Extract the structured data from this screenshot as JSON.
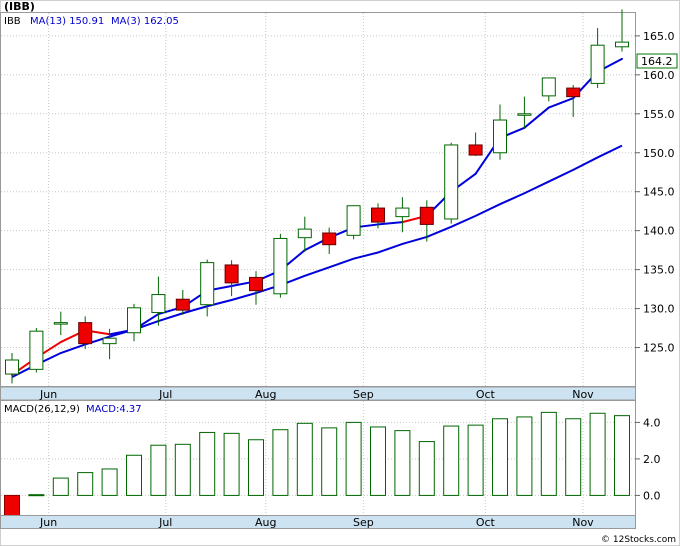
{
  "chart_data": [
    {
      "type": "candlestick",
      "title": "(IBB)",
      "symbol_label": "IBB",
      "legend": [
        {
          "label": "MA(13)",
          "value": "150.91",
          "color": "#0000cc"
        },
        {
          "label": "MA(3)",
          "value": "162.05",
          "color": "#0000cc"
        }
      ],
      "last_price_label": "164.2",
      "ylim": [
        120,
        168
      ],
      "yticks": [
        125,
        130,
        135,
        140,
        145,
        150,
        155,
        160,
        165
      ],
      "x_month_labels": [
        {
          "label": "Jun",
          "index": 1.5
        },
        {
          "label": "Jul",
          "index": 6.3
        },
        {
          "label": "Aug",
          "index": 10.4
        },
        {
          "label": "Sep",
          "index": 14.4
        },
        {
          "label": "Oct",
          "index": 19.4
        },
        {
          "label": "Nov",
          "index": 23.4
        }
      ],
      "candles": [
        {
          "open": 121.6,
          "high": 124.3,
          "low": 120.4,
          "close": 123.4
        },
        {
          "open": 122.2,
          "high": 127.5,
          "low": 121.8,
          "close": 127.1
        },
        {
          "open": 128.1,
          "high": 129.6,
          "low": 126.6,
          "close": 128.2
        },
        {
          "open": 128.2,
          "high": 129.0,
          "low": 124.8,
          "close": 125.5
        },
        {
          "open": 125.5,
          "high": 127.4,
          "low": 123.5,
          "close": 126.2
        },
        {
          "open": 126.9,
          "high": 130.6,
          "low": 125.8,
          "close": 130.1
        },
        {
          "open": 129.5,
          "high": 134.1,
          "low": 127.8,
          "close": 131.8
        },
        {
          "open": 131.2,
          "high": 132.4,
          "low": 129.2,
          "close": 129.8
        },
        {
          "open": 130.5,
          "high": 136.3,
          "low": 129.0,
          "close": 135.9
        },
        {
          "open": 135.6,
          "high": 136.2,
          "low": 131.6,
          "close": 133.3
        },
        {
          "open": 134.0,
          "high": 134.8,
          "low": 130.5,
          "close": 132.3
        },
        {
          "open": 131.9,
          "high": 139.6,
          "low": 131.4,
          "close": 139.0
        },
        {
          "open": 139.1,
          "high": 141.8,
          "low": 137.3,
          "close": 140.2
        },
        {
          "open": 139.7,
          "high": 140.4,
          "low": 137.0,
          "close": 138.2
        },
        {
          "open": 139.4,
          "high": 143.2,
          "low": 138.9,
          "close": 143.2
        },
        {
          "open": 142.9,
          "high": 143.5,
          "low": 140.3,
          "close": 141.1
        },
        {
          "open": 141.8,
          "high": 144.3,
          "low": 139.8,
          "close": 142.9
        },
        {
          "open": 143.0,
          "high": 143.9,
          "low": 138.6,
          "close": 140.8
        },
        {
          "open": 141.5,
          "high": 151.3,
          "low": 140.9,
          "close": 151.0
        },
        {
          "open": 151.0,
          "high": 152.6,
          "low": 149.6,
          "close": 149.7
        },
        {
          "open": 150.0,
          "high": 156.2,
          "low": 149.1,
          "close": 154.2
        },
        {
          "open": 155.0,
          "high": 157.2,
          "low": 153.1,
          "close": 155.0
        },
        {
          "open": 157.3,
          "high": 159.6,
          "low": 156.6,
          "close": 159.6
        },
        {
          "open": 158.3,
          "high": 158.7,
          "low": 154.6,
          "close": 157.2
        },
        {
          "open": 158.9,
          "high": 166.0,
          "low": 158.3,
          "close": 163.8
        },
        {
          "open": 163.6,
          "high": 168.4,
          "low": 163.0,
          "close": 164.2
        }
      ],
      "ma13": [
        null,
        null,
        null,
        null,
        null,
        null,
        null,
        null,
        null,
        null,
        null,
        null,
        null,
        null,
        null,
        null,
        null,
        null,
        null,
        null,
        null,
        null,
        null,
        null,
        null,
        150.91
      ],
      "ma13_series": [
        121.2,
        122.8,
        124.3,
        125.4,
        126.4,
        127.3,
        128.4,
        129.4,
        130.3,
        131.1,
        132.0,
        133.0,
        134.2,
        135.3,
        136.4,
        137.2,
        138.3,
        139.2,
        140.5,
        141.9,
        143.4,
        144.8,
        146.3,
        147.8,
        149.4,
        150.91
      ],
      "ma3": [
        121.5,
        123.7,
        125.7,
        127.2,
        126.7,
        127.3,
        129.3,
        130.2,
        132.3,
        132.9,
        133.5,
        134.9,
        137.5,
        139.1,
        140.4,
        140.8,
        141.1,
        141.9,
        145.0,
        147.3,
        151.9,
        153.2,
        155.8,
        157.0,
        160.4,
        162.05
      ],
      "ma3_red_until": 4,
      "ma3_red_segment": [
        16,
        17
      ]
    },
    {
      "type": "bar",
      "title": "MACD(26,12,9)",
      "legend": [
        {
          "label": "MACD:4.37",
          "color": "#0000cc"
        }
      ],
      "ylim": [
        -1.1,
        5.2
      ],
      "yticks": [
        0.0,
        2.0,
        4.0
      ],
      "ytick_labels": [
        "0.0",
        "2.0",
        "4.0"
      ],
      "x_month_labels": [
        {
          "label": "Jun",
          "index": 1.5
        },
        {
          "label": "Jul",
          "index": 6.3
        },
        {
          "label": "Aug",
          "index": 10.4
        },
        {
          "label": "Sep",
          "index": 14.4
        },
        {
          "label": "Oct",
          "index": 19.4
        },
        {
          "label": "Nov",
          "index": 23.4
        }
      ],
      "values": [
        -1.1,
        0.04,
        0.95,
        1.25,
        1.45,
        2.2,
        2.75,
        2.8,
        3.45,
        3.4,
        3.05,
        3.6,
        3.95,
        3.7,
        4.0,
        3.75,
        3.55,
        2.95,
        3.8,
        3.85,
        4.2,
        4.3,
        4.55,
        4.2,
        4.5,
        4.37
      ]
    }
  ],
  "watermark": "© 12Stocks.com"
}
